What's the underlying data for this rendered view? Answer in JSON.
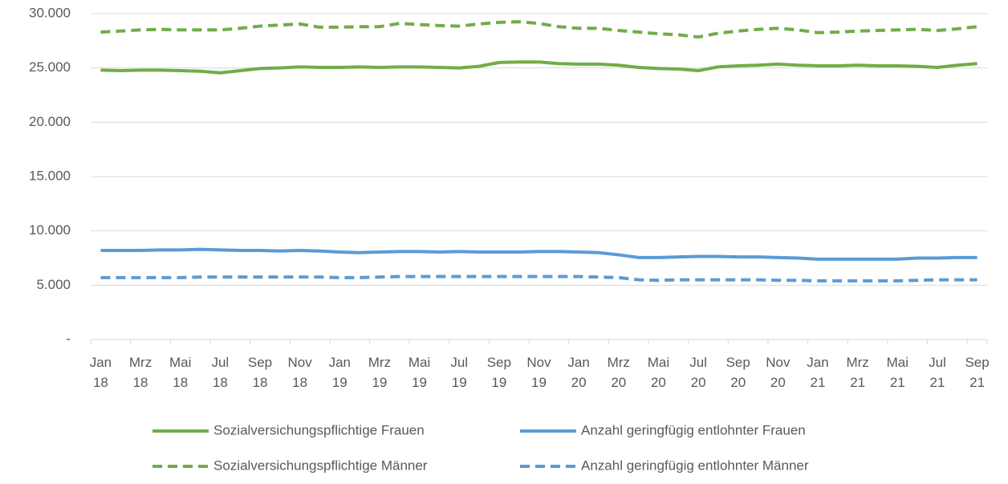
{
  "chart_data": {
    "type": "line",
    "categories": [
      [
        "Jan",
        "18"
      ],
      null,
      [
        "Mrz",
        "18"
      ],
      null,
      [
        "Mai",
        "18"
      ],
      null,
      [
        "Jul",
        "18"
      ],
      null,
      [
        "Sep",
        "18"
      ],
      null,
      [
        "Nov",
        "18"
      ],
      null,
      [
        "Jan",
        "19"
      ],
      null,
      [
        "Mrz",
        "19"
      ],
      null,
      [
        "Mai",
        "19"
      ],
      null,
      [
        "Jul",
        "19"
      ],
      null,
      [
        "Sep",
        "19"
      ],
      null,
      [
        "Nov",
        "19"
      ],
      null,
      [
        "Jan",
        "20"
      ],
      null,
      [
        "Mrz",
        "20"
      ],
      null,
      [
        "Mai",
        "20"
      ],
      null,
      [
        "Jul",
        "20"
      ],
      null,
      [
        "Sep",
        "20"
      ],
      null,
      [
        "Nov",
        "20"
      ],
      null,
      [
        "Jan",
        "21"
      ],
      null,
      [
        "Mrz",
        "21"
      ],
      null,
      [
        "Mai",
        "21"
      ],
      null,
      [
        "Jul",
        "21"
      ],
      null,
      [
        "Sep",
        "21"
      ]
    ],
    "series": [
      {
        "name": "Sozialversichungspflichtige Frauen",
        "color": "#70ad47",
        "dashed": false,
        "values": [
          24800,
          24750,
          24800,
          24800,
          24750,
          24700,
          24550,
          24750,
          24950,
          25000,
          25100,
          25050,
          25050,
          25100,
          25050,
          25100,
          25100,
          25050,
          25000,
          25150,
          25500,
          25550,
          25550,
          25400,
          25350,
          25350,
          25250,
          25050,
          24950,
          24900,
          24750,
          25100,
          25200,
          25250,
          25350,
          25250,
          25200,
          25200,
          25250,
          25200,
          25200,
          25150,
          25050,
          25250,
          25400
        ]
      },
      {
        "name": "Anzahl geringfügig entlohnter Frauen",
        "color": "#5b9bd5",
        "dashed": false,
        "values": [
          8200,
          8200,
          8200,
          8250,
          8250,
          8300,
          8250,
          8200,
          8200,
          8150,
          8200,
          8150,
          8050,
          8000,
          8050,
          8100,
          8100,
          8050,
          8100,
          8050,
          8050,
          8050,
          8100,
          8100,
          8050,
          8000,
          7800,
          7550,
          7550,
          7600,
          7650,
          7650,
          7600,
          7600,
          7550,
          7500,
          7400,
          7400,
          7400,
          7400,
          7400,
          7500,
          7500,
          7550,
          7550
        ]
      },
      {
        "name": "Sozialversichungspflichtige Männer",
        "color": "#70ad47",
        "dashed": true,
        "values": [
          28300,
          28400,
          28500,
          28550,
          28500,
          28500,
          28500,
          28650,
          28850,
          28950,
          29050,
          28750,
          28750,
          28800,
          28800,
          29100,
          29000,
          28900,
          28850,
          29050,
          29200,
          29250,
          29100,
          28800,
          28650,
          28650,
          28450,
          28300,
          28150,
          28050,
          27850,
          28200,
          28400,
          28550,
          28650,
          28500,
          28250,
          28300,
          28400,
          28450,
          28500,
          28550,
          28450,
          28600,
          28800
        ]
      },
      {
        "name": "Anzahl geringfügig entlohnter Männer",
        "color": "#5b9bd5",
        "dashed": true,
        "values": [
          5700,
          5700,
          5700,
          5700,
          5700,
          5750,
          5750,
          5750,
          5750,
          5750,
          5750,
          5750,
          5700,
          5700,
          5750,
          5800,
          5800,
          5800,
          5800,
          5800,
          5800,
          5800,
          5800,
          5800,
          5800,
          5750,
          5700,
          5500,
          5450,
          5500,
          5500,
          5500,
          5500,
          5500,
          5450,
          5450,
          5400,
          5400,
          5400,
          5400,
          5400,
          5450,
          5500,
          5500,
          5500
        ]
      }
    ],
    "ylim": [
      0,
      30000
    ],
    "yticks": [
      {
        "value": 0,
        "label": "-"
      },
      {
        "value": 5000,
        "label": "5.000"
      },
      {
        "value": 10000,
        "label": "10.000"
      },
      {
        "value": 15000,
        "label": "15.000"
      },
      {
        "value": 20000,
        "label": "20.000"
      },
      {
        "value": 25000,
        "label": "25.000"
      },
      {
        "value": 30000,
        "label": "30.000"
      }
    ],
    "grid": true,
    "legend": "bottom"
  }
}
